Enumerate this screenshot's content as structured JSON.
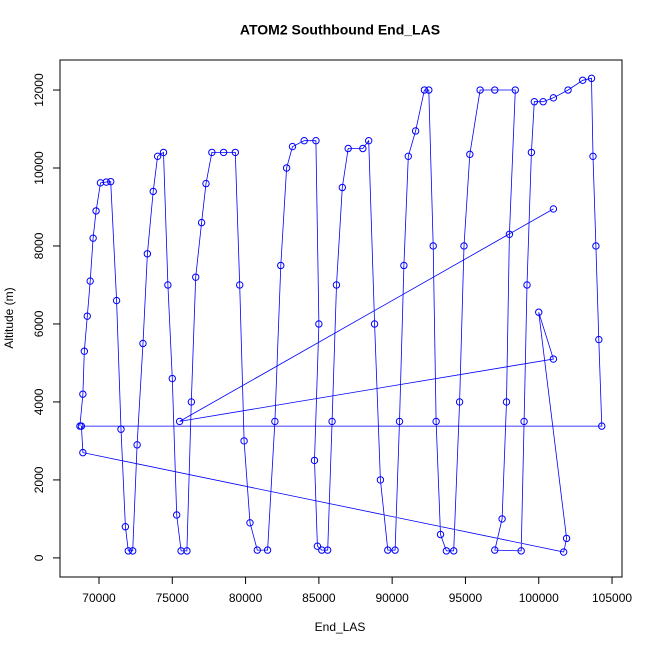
{
  "chart_data": {
    "type": "scatter",
    "title": "ATOM2 Southbound End_LAS",
    "x_label": "End_LAS",
    "y_label": "Altitude (m)",
    "color": "#0000ff",
    "lines": true,
    "x": [
      68700,
      68900,
      69000,
      69200,
      69400,
      69600,
      69800,
      70100,
      70500,
      70800,
      71200,
      71500,
      71800,
      72000,
      72300,
      72600,
      73000,
      73300,
      73700,
      74000,
      74400,
      74700,
      75000,
      75300,
      75600,
      76000,
      76300,
      76600,
      77000,
      77300,
      77700,
      78500,
      79300,
      79600,
      79900,
      80300,
      80800,
      81500,
      82000,
      82400,
      82800,
      83200,
      84000,
      84800,
      85000,
      84700,
      84900,
      85200,
      85600,
      85900,
      86200,
      86600,
      87000,
      88000,
      88400,
      88800,
      89200,
      89700,
      90200,
      90500,
      90800,
      91100,
      91600,
      92200,
      92500,
      92800,
      93000,
      93300,
      93700,
      94200,
      94600,
      94900,
      95300,
      96000,
      97000,
      98400,
      98000,
      97800,
      97500,
      97000,
      98800,
      99000,
      99200,
      99500,
      99700,
      100300,
      101000,
      102000,
      103000,
      103600,
      103700,
      103900,
      104100,
      104300,
      68800,
      68900,
      101700,
      101900,
      100000,
      101000,
      75500,
      101000
    ],
    "values": [
      3380,
      4200,
      5300,
      6200,
      7100,
      8200,
      8900,
      9620,
      9640,
      9650,
      6600,
      3300,
      800,
      180,
      180,
      2900,
      5500,
      7800,
      9400,
      10300,
      10400,
      7000,
      4600,
      1100,
      180,
      180,
      4000,
      7200,
      8600,
      9600,
      10400,
      10400,
      10400,
      7000,
      3000,
      900,
      200,
      200,
      3500,
      7500,
      10000,
      10550,
      10700,
      10700,
      6000,
      2500,
      300,
      200,
      200,
      3500,
      7000,
      9500,
      10500,
      10500,
      10700,
      6000,
      2000,
      200,
      200,
      3500,
      7500,
      10300,
      10950,
      12000,
      12000,
      8000,
      3500,
      600,
      180,
      180,
      4000,
      8000,
      10350,
      12000,
      12000,
      12000,
      8300,
      4000,
      1000,
      200,
      180,
      3500,
      7000,
      10400,
      11700,
      11700,
      11800,
      12000,
      12250,
      12300,
      10300,
      8000,
      5600,
      3380,
      3380,
      2700,
      150,
      500,
      6300,
      5100,
      3500,
      8950
    ],
    "xlim": [
      67340,
      105680
    ],
    "ylim": [
      -490,
      12770
    ],
    "xticks": [
      70000,
      75000,
      80000,
      85000,
      90000,
      95000,
      100000,
      105000
    ],
    "yticks": [
      0,
      2000,
      4000,
      6000,
      8000,
      10000,
      12000
    ]
  }
}
